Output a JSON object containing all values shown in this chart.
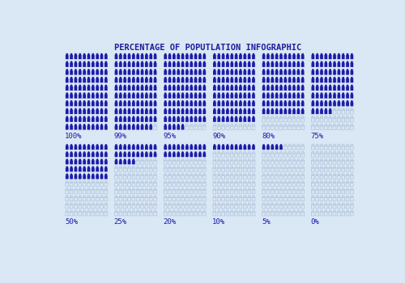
{
  "title": "PERCENTAGE OF POPUTLATION INFOGRAPHIC",
  "title_color": "#1c1c9c",
  "title_fontsize": 7.5,
  "background_color": "#dae7f4",
  "filled_color": "#1c1caa",
  "empty_color": "#b0c4dc",
  "label_color": "#1c1caa",
  "label_fontsize": 6.5,
  "rows": 10,
  "cols": 10,
  "percentages_top": [
    100,
    99,
    95,
    90,
    80,
    75
  ],
  "percentages_bottom": [
    50,
    25,
    20,
    10,
    5,
    0
  ],
  "labels_top": [
    "100%",
    "99%",
    "95%",
    "90%",
    "80%",
    "75%"
  ],
  "labels_bottom": [
    "50%",
    "25%",
    "20%",
    "10%",
    "5%",
    "0%"
  ]
}
